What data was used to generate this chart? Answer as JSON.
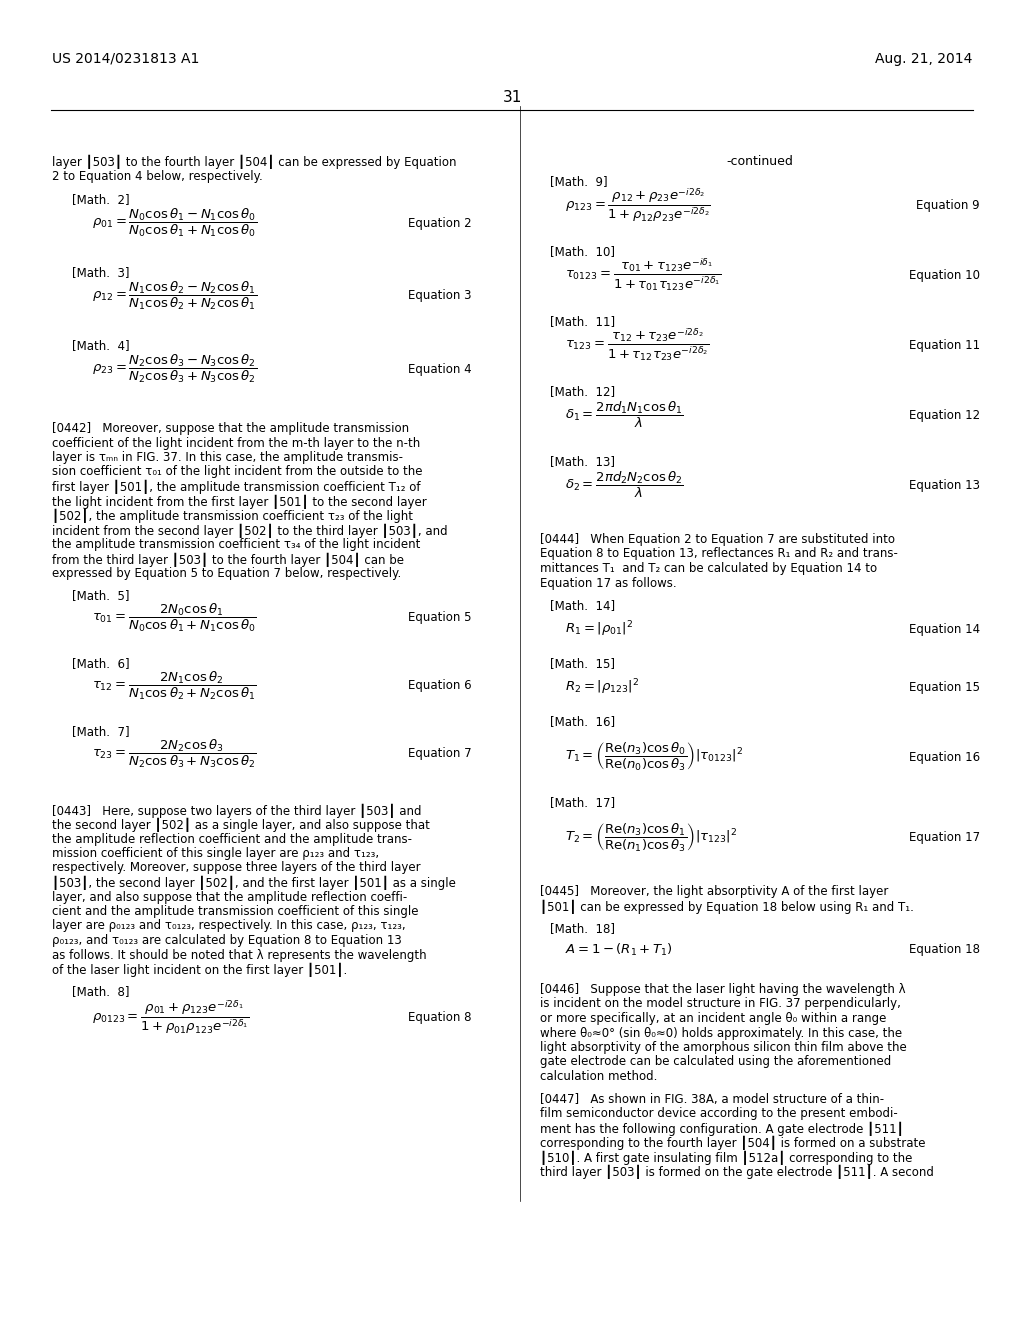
{
  "background_color": "#ffffff",
  "page_number": "31",
  "header_left": "US 2014/0231813 A1",
  "header_right": "Aug. 21, 2014",
  "left_col": {
    "intro_text": "layer ┃503┃ to the fourth layer ┃504┃ can be expressed by Equation\n2 to Equation 4 below, respectively.",
    "blocks": [
      {
        "label": "[Math.  2]",
        "equation": "$\\rho_{01} = \\dfrac{N_0\\cos\\theta_1 - N_1\\cos\\theta_0}{N_0\\cos\\theta_1 + N_1\\cos\\theta_0}$",
        "eq_label": "Equation 2"
      },
      {
        "label": "[Math.  3]",
        "equation": "$\\rho_{12} = \\dfrac{N_1\\cos\\theta_2 - N_2\\cos\\theta_1}{N_1\\cos\\theta_2 + N_2\\cos\\theta_1}$",
        "eq_label": "Equation 3"
      },
      {
        "label": "[Math.  4]",
        "equation": "$\\rho_{23} = \\dfrac{N_2\\cos\\theta_3 - N_3\\cos\\theta_2}{N_2\\cos\\theta_3 + N_3\\cos\\theta_2}$",
        "eq_label": "Equation 4"
      }
    ],
    "para0442": "[0442]    Moreover, suppose that the amplitude transmission\ncoefficient of the light incident from the m-th layer to the n-th\nlayer is τₘₙ in FIG. 37. In this case, the amplitude transmis-\nsion coefficient τ₀₁ of the light incident from the outside to the\nfirst layer 501, the amplitude transmission coefficient T₁₂ of\nthe light incident from the first layer 501 to the second layer\n502, the amplitude transmission coefficient τ₂₃ of the light\nincident from the second layer 502 to the third layer 503, and\nthe amplitude transmission coefficient τ₃₄ of the light incident\nfrom the third layer 503 to the fourth layer 504 can be\nexpressed by Equation 5 to Equation 7 below, respectively.",
    "blocks2": [
      {
        "label": "[Math.  5]",
        "equation": "$\\tau_{01} = \\dfrac{2N_0\\cos\\theta_1}{N_0\\cos\\theta_1 + N_1\\cos\\theta_0}$",
        "eq_label": "Equation 5"
      },
      {
        "label": "[Math.  6]",
        "equation": "$\\tau_{12} = \\dfrac{2N_1\\cos\\theta_2}{N_1\\cos\\theta_2 + N_2\\cos\\theta_1}$",
        "eq_label": "Equation 6"
      },
      {
        "label": "[Math.  7]",
        "equation": "$\\tau_{23} = \\dfrac{2N_2\\cos\\theta_3}{N_2\\cos\\theta_3 + N_3\\cos\\theta_2}$",
        "eq_label": "Equation 7"
      }
    ],
    "para0443": "[0443]    Here, suppose two layers of the third layer 503 and\nthe second layer 502 as a single layer, and also suppose that\nthe amplitude reflection coefficient and the amplitude trans-\nmission coefficient of this single layer are ρ₁₂₃ and τ₁₂₃,\nrespectively. Moreover, suppose three layers of the third layer\n503, the second layer 502, and the first layer 501 as a single\nlayer, and also suppose that the amplitude reflection coeffi-\ncient and the amplitude transmission coefficient of this single\nlayer are ρ₀₁₂₃ and τ₀₁₂₃, respectively. In this case, ρ₁₂₃, τ₁₂₃,\nρ₀₁₂₃, and τ₀₁₂₃ are calculated by Equation 8 to Equation 13\nas follows. It should be noted that λ represents the wavelength\nof the laser light incident on the first layer 501.",
    "blocks3": [
      {
        "label": "[Math.  8]",
        "equation": "$\\rho_{0123} = \\dfrac{\\rho_{01} + \\rho_{123}e^{-i2\\delta_1}}{1 + \\rho_{01}\\rho_{123}e^{-i2\\delta_1}}$",
        "eq_label": "Equation 8"
      }
    ]
  },
  "right_col": {
    "continued": "-continued",
    "blocks": [
      {
        "label": "[Math.  9]",
        "equation": "$\\rho_{123} = \\dfrac{\\rho_{12} + \\rho_{23}e^{-i2\\delta_2}}{1 + \\rho_{12}\\rho_{23}e^{-i2\\delta_2}}$",
        "eq_label": "Equation 9"
      },
      {
        "label": "[Math.  10]",
        "equation": "$\\tau_{0123} = \\dfrac{\\tau_{01} + \\tau_{123}e^{-i\\delta_1}}{1 + \\tau_{01}\\tau_{123}e^{-i2\\delta_1}}$",
        "eq_label": "Equation 10"
      },
      {
        "label": "[Math.  11]",
        "equation": "$\\tau_{123} = \\dfrac{\\tau_{12} + \\tau_{23}e^{-i2\\delta_2}}{1 + \\tau_{12}\\tau_{23}e^{-i2\\delta_2}}$",
        "eq_label": "Equation 11"
      },
      {
        "label": "[Math.  12]",
        "equation": "$\\delta_1 = \\dfrac{2\\pi d_1 N_1\\cos\\theta_1}{\\lambda}$",
        "eq_label": "Equation 12"
      },
      {
        "label": "[Math.  13]",
        "equation": "$\\delta_2 = \\dfrac{2\\pi d_2 N_2\\cos\\theta_2}{\\lambda}$",
        "eq_label": "Equation 13"
      }
    ],
    "para0444": "[0444]    When Equation 2 to Equation 7 are substituted into\nEquation 8 to Equation 13, reflectances R₁ and R₂ and trans-\nmittances T₁  and T₂ can be calculated by Equation 14 to\nEquation 17 as follows.",
    "blocks2": [
      {
        "label": "[Math.  14]",
        "equation": "$R_1 = |\\rho_{01}|^2$",
        "eq_label": "Equation 14"
      },
      {
        "label": "[Math.  15]",
        "equation": "$R_2 = |\\rho_{123}|^2$",
        "eq_label": "Equation 15"
      },
      {
        "label": "[Math.  16]",
        "equation": "$T_1 = \\left(\\dfrac{\\mathrm{Re}(n_3)\\cos\\theta_0}{\\mathrm{Re}(n_0)\\cos\\theta_3}\\right)|\\tau_{0123}|^2$",
        "eq_label": "Equation 16"
      },
      {
        "label": "[Math.  17]",
        "equation": "$T_2 = \\left(\\dfrac{\\mathrm{Re}(n_3)\\cos\\theta_1}{\\mathrm{Re}(n_1)\\cos\\theta_3}\\right)|\\tau_{123}|^2$",
        "eq_label": "Equation 17"
      }
    ],
    "para0445": "[0445]    Moreover, the light absorptivity A of the first layer\n501 can be expressed by Equation 18 below using R₁ and T₁.",
    "blocks3": [
      {
        "label": "[Math.  18]",
        "equation": "$A=1-(R_1+T_1)$",
        "eq_label": "Equation 18"
      }
    ],
    "para0446": "[0446]    Suppose that the laser light having the wavelength λ\nis incident on the model structure in FIG. 37 perpendicularly,\nor more specifically, at an incident angle θ₀ within a range\nwhere θ₀≈0° (sin θ₀≈0) holds approximately. In this case, the\nlight absorptivity of the amorphous silicon thin film above the\ngate electrode can be calculated using the aforementioned\ncalculation method.",
    "para0447": "[0447]    As shown in FIG. 38A, a model structure of a thin-\nfilm semiconductor device according to the present embodi-\nment has the following configuration. A gate electrode 511\ncorresponding to the fourth layer 504 is formed on a substrate\n510. A first gate insulating film 512a corresponding to the\nthird layer 503 is formed on the gate electrode 511. A second"
  }
}
